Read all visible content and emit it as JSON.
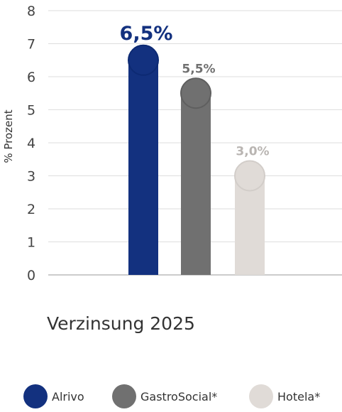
{
  "chart_data": {
    "type": "bar",
    "categories": [
      "Alrivo",
      "GastroSocial*",
      "Hotela*"
    ],
    "values": [
      6.5,
      5.5,
      3.0
    ],
    "data_labels": [
      "6,5%",
      "5,5%",
      "3,0%"
    ],
    "colors": [
      "#13317f",
      "#707070",
      "#e0dbd7"
    ],
    "label_colors": [
      "#13317f",
      "#707070",
      "#b9b5b2"
    ],
    "ylabel": "% Prozent",
    "xlabel": "Verzinsung 2025",
    "ylim": [
      0,
      8
    ],
    "yticks": [
      "0",
      "1",
      "2",
      "3",
      "4",
      "5",
      "6",
      "7",
      "8"
    ],
    "grid": true,
    "legend_position": "bottom"
  },
  "legend": {
    "items": [
      {
        "label": "Alrivo",
        "color": "#13317f"
      },
      {
        "label": "GastroSocial*",
        "color": "#707070"
      },
      {
        "label": "Hotela*",
        "color": "#e0dbd7"
      }
    ]
  }
}
